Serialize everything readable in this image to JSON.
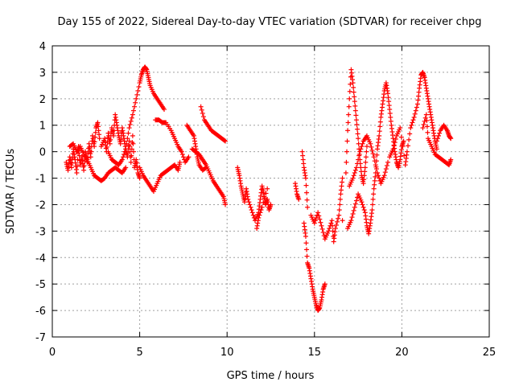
{
  "chart_data": {
    "type": "scatter",
    "title": "Day 155 of 2022, Sidereal Day-to-day VTEC variation (SDTVAR) for receiver chpg",
    "xlabel": "GPS time / hours",
    "ylabel": "SDTVAR / TECUs",
    "xlim": [
      0,
      25
    ],
    "ylim": [
      -7,
      4
    ],
    "xticks": [
      0,
      5,
      10,
      15,
      20,
      25
    ],
    "yticks": [
      -7,
      -6,
      -5,
      -4,
      -3,
      -2,
      -1,
      0,
      1,
      2,
      3,
      4
    ],
    "grid": true,
    "marker": "+",
    "color": "#ff0000",
    "series": [
      {
        "name": "SDTVAR chpg",
        "points": [
          [
            0.8,
            -0.4
          ],
          [
            0.9,
            -0.7
          ],
          [
            1.0,
            -0.2
          ],
          [
            1.1,
            -0.6
          ],
          [
            1.2,
            0.1
          ],
          [
            1.3,
            -0.3
          ],
          [
            1.4,
            -0.8
          ],
          [
            1.5,
            0.2
          ],
          [
            1.6,
            -0.5
          ],
          [
            1.7,
            -0.2
          ],
          [
            1.8,
            -0.7
          ],
          [
            1.9,
            0.0
          ],
          [
            2.0,
            -0.4
          ],
          [
            2.1,
            0.3
          ],
          [
            2.2,
            -0.2
          ],
          [
            2.3,
            0.6
          ],
          [
            2.4,
            0.2
          ],
          [
            2.5,
            0.9
          ],
          [
            2.6,
            1.1
          ],
          [
            2.7,
            0.5
          ],
          [
            1.0,
            0.2
          ],
          [
            1.2,
            0.3
          ],
          [
            1.4,
            0.0
          ],
          [
            1.6,
            0.2
          ],
          [
            1.8,
            -0.1
          ],
          [
            2.0,
            -0.3
          ],
          [
            2.2,
            -0.6
          ],
          [
            2.4,
            -0.9
          ],
          [
            2.6,
            -1.0
          ],
          [
            2.8,
            -1.1
          ],
          [
            3.0,
            -1.0
          ],
          [
            3.2,
            -0.8
          ],
          [
            3.4,
            -0.7
          ],
          [
            3.6,
            -0.6
          ],
          [
            3.8,
            -0.7
          ],
          [
            4.0,
            -0.8
          ],
          [
            4.2,
            -0.6
          ],
          [
            2.8,
            0.2
          ],
          [
            3.0,
            0.5
          ],
          [
            3.1,
            0.0
          ],
          [
            3.2,
            0.7
          ],
          [
            3.3,
            0.3
          ],
          [
            3.4,
            0.9
          ],
          [
            3.5,
            0.6
          ],
          [
            3.6,
            1.4
          ],
          [
            3.7,
            1.0
          ],
          [
            3.8,
            0.6
          ],
          [
            3.9,
            0.3
          ],
          [
            4.0,
            0.9
          ],
          [
            4.1,
            0.5
          ],
          [
            4.2,
            0.1
          ],
          [
            4.3,
            -0.2
          ],
          [
            4.4,
            0.4
          ],
          [
            4.5,
            -0.4
          ],
          [
            4.6,
            0.6
          ],
          [
            4.7,
            -0.6
          ],
          [
            4.8,
            -0.3
          ],
          [
            4.9,
            -0.8
          ],
          [
            5.0,
            -1.0
          ],
          [
            3.2,
            0.0
          ],
          [
            3.4,
            -0.3
          ],
          [
            3.6,
            -0.4
          ],
          [
            3.8,
            -0.5
          ],
          [
            4.0,
            -0.3
          ],
          [
            4.2,
            0.1
          ],
          [
            4.4,
            0.9
          ],
          [
            4.6,
            1.4
          ],
          [
            4.8,
            2.0
          ],
          [
            5.0,
            2.6
          ],
          [
            5.1,
            2.9
          ],
          [
            5.2,
            3.1
          ],
          [
            5.3,
            3.2
          ],
          [
            5.4,
            3.1
          ],
          [
            5.5,
            2.8
          ],
          [
            5.6,
            2.5
          ],
          [
            5.8,
            2.2
          ],
          [
            6.0,
            2.0
          ],
          [
            6.2,
            1.8
          ],
          [
            6.4,
            1.6
          ],
          [
            5.0,
            -0.6
          ],
          [
            5.2,
            -0.9
          ],
          [
            5.4,
            -1.1
          ],
          [
            5.6,
            -1.3
          ],
          [
            5.8,
            -1.5
          ],
          [
            6.0,
            -1.2
          ],
          [
            6.2,
            -0.9
          ],
          [
            6.4,
            -0.8
          ],
          [
            6.6,
            -0.7
          ],
          [
            6.8,
            -0.6
          ],
          [
            7.0,
            -0.5
          ],
          [
            7.2,
            -0.7
          ],
          [
            7.3,
            -0.4
          ],
          [
            5.9,
            1.2
          ],
          [
            6.1,
            1.2
          ],
          [
            6.3,
            1.1
          ],
          [
            6.5,
            1.1
          ],
          [
            6.8,
            0.8
          ],
          [
            7.0,
            0.5
          ],
          [
            7.2,
            0.2
          ],
          [
            7.4,
            0.0
          ],
          [
            7.6,
            -0.4
          ],
          [
            7.8,
            -0.2
          ],
          [
            7.7,
            1.0
          ],
          [
            7.9,
            0.8
          ],
          [
            8.1,
            0.6
          ],
          [
            8.2,
            0.2
          ],
          [
            8.3,
            -0.2
          ],
          [
            8.4,
            -0.5
          ],
          [
            8.6,
            -0.7
          ],
          [
            8.8,
            -0.6
          ],
          [
            8.5,
            1.7
          ],
          [
            8.7,
            1.2
          ],
          [
            8.9,
            1.0
          ],
          [
            9.1,
            0.8
          ],
          [
            9.3,
            0.7
          ],
          [
            9.5,
            0.6
          ],
          [
            9.7,
            0.5
          ],
          [
            9.9,
            0.4
          ],
          [
            8.0,
            0.1
          ],
          [
            8.2,
            0.0
          ],
          [
            8.4,
            -0.1
          ],
          [
            8.6,
            -0.3
          ],
          [
            8.8,
            -0.5
          ],
          [
            9.0,
            -0.8
          ],
          [
            9.2,
            -1.1
          ],
          [
            9.4,
            -1.3
          ],
          [
            9.6,
            -1.5
          ],
          [
            9.8,
            -1.7
          ],
          [
            9.9,
            -2.0
          ],
          [
            10.6,
            -0.6
          ],
          [
            10.7,
            -0.9
          ],
          [
            10.8,
            -1.3
          ],
          [
            10.9,
            -1.6
          ],
          [
            11.0,
            -1.9
          ],
          [
            11.1,
            -1.4
          ],
          [
            11.2,
            -1.8
          ],
          [
            11.4,
            -2.2
          ],
          [
            11.6,
            -2.6
          ],
          [
            11.8,
            -2.3
          ],
          [
            11.9,
            -1.8
          ],
          [
            12.0,
            -1.3
          ],
          [
            12.1,
            -1.6
          ],
          [
            12.2,
            -2.0
          ],
          [
            12.3,
            -1.8
          ],
          [
            12.4,
            -2.2
          ],
          [
            12.5,
            -2.0
          ],
          [
            11.7,
            -2.9
          ],
          [
            11.8,
            -2.5
          ],
          [
            12.0,
            -2.1
          ],
          [
            12.3,
            -1.4
          ],
          [
            13.9,
            -1.2
          ],
          [
            14.0,
            -1.6
          ],
          [
            14.1,
            -1.8
          ],
          [
            14.3,
            0.0
          ],
          [
            14.4,
            -0.6
          ],
          [
            14.5,
            -1.0
          ],
          [
            14.6,
            -2.1
          ],
          [
            14.4,
            -2.7
          ],
          [
            14.5,
            -3.2
          ],
          [
            14.6,
            -4.2
          ],
          [
            14.7,
            -4.4
          ],
          [
            14.8,
            -4.8
          ],
          [
            14.9,
            -5.2
          ],
          [
            15.0,
            -5.5
          ],
          [
            15.1,
            -5.8
          ],
          [
            15.2,
            -6.0
          ],
          [
            15.3,
            -5.9
          ],
          [
            15.4,
            -5.6
          ],
          [
            15.5,
            -5.2
          ],
          [
            15.6,
            -5.0
          ],
          [
            14.8,
            -2.4
          ],
          [
            15.0,
            -2.7
          ],
          [
            15.2,
            -2.3
          ],
          [
            15.4,
            -2.8
          ],
          [
            15.6,
            -3.3
          ],
          [
            15.8,
            -3.0
          ],
          [
            16.0,
            -2.6
          ],
          [
            16.1,
            -3.4
          ],
          [
            16.2,
            -2.9
          ],
          [
            16.4,
            -2.4
          ],
          [
            16.5,
            -1.6
          ],
          [
            16.6,
            -1.0
          ],
          [
            16.6,
            -2.6
          ],
          [
            16.8,
            -0.8
          ],
          [
            16.9,
            0.8
          ],
          [
            17.0,
            2.0
          ],
          [
            17.1,
            3.1
          ],
          [
            17.2,
            2.6
          ],
          [
            17.3,
            1.9
          ],
          [
            17.4,
            1.2
          ],
          [
            17.5,
            0.5
          ],
          [
            17.6,
            -0.3
          ],
          [
            17.7,
            -0.9
          ],
          [
            17.8,
            -1.2
          ],
          [
            17.9,
            -0.6
          ],
          [
            18.0,
            0.2
          ],
          [
            17.0,
            -1.3
          ],
          [
            17.2,
            -1.0
          ],
          [
            17.4,
            -0.6
          ],
          [
            17.6,
            0.0
          ],
          [
            17.8,
            0.4
          ],
          [
            18.0,
            0.6
          ],
          [
            18.2,
            0.3
          ],
          [
            18.4,
            -0.2
          ],
          [
            18.6,
            -0.8
          ],
          [
            18.8,
            -1.2
          ],
          [
            19.0,
            -0.9
          ],
          [
            19.2,
            -0.4
          ],
          [
            16.9,
            -2.9
          ],
          [
            17.1,
            -2.6
          ],
          [
            17.3,
            -2.1
          ],
          [
            17.5,
            -1.6
          ],
          [
            17.7,
            -1.9
          ],
          [
            17.9,
            -2.3
          ],
          [
            18.0,
            -2.8
          ],
          [
            18.1,
            -3.1
          ],
          [
            18.2,
            -2.7
          ],
          [
            18.3,
            -2.2
          ],
          [
            18.4,
            -1.4
          ],
          [
            18.5,
            -0.8
          ],
          [
            18.6,
            0.1
          ],
          [
            18.7,
            0.6
          ],
          [
            18.8,
            1.3
          ],
          [
            18.9,
            1.8
          ],
          [
            19.0,
            2.3
          ],
          [
            19.1,
            2.6
          ],
          [
            19.2,
            2.2
          ],
          [
            19.3,
            1.6
          ],
          [
            19.4,
            1.0
          ],
          [
            19.5,
            0.5
          ],
          [
            19.6,
            0.0
          ],
          [
            19.7,
            -0.4
          ],
          [
            19.8,
            -0.6
          ],
          [
            19.9,
            -0.3
          ],
          [
            20.0,
            0.2
          ],
          [
            20.1,
            0.4
          ],
          [
            19.3,
            -0.2
          ],
          [
            19.5,
            0.1
          ],
          [
            19.7,
            0.6
          ],
          [
            19.9,
            0.9
          ],
          [
            20.2,
            -0.5
          ],
          [
            20.3,
            0.0
          ],
          [
            20.5,
            0.9
          ],
          [
            20.7,
            1.3
          ],
          [
            20.9,
            1.8
          ],
          [
            21.0,
            2.4
          ],
          [
            21.1,
            2.9
          ],
          [
            21.2,
            3.0
          ],
          [
            21.3,
            2.8
          ],
          [
            21.4,
            2.4
          ],
          [
            21.5,
            2.0
          ],
          [
            21.6,
            1.6
          ],
          [
            21.7,
            1.2
          ],
          [
            21.8,
            0.8
          ],
          [
            21.9,
            0.4
          ],
          [
            22.0,
            0.1
          ],
          [
            21.2,
            0.9
          ],
          [
            21.4,
            1.4
          ],
          [
            21.5,
            0.5
          ],
          [
            21.7,
            0.2
          ],
          [
            21.9,
            -0.1
          ],
          [
            22.1,
            -0.2
          ],
          [
            22.3,
            -0.3
          ],
          [
            22.5,
            -0.4
          ],
          [
            22.7,
            -0.5
          ],
          [
            22.8,
            -0.3
          ],
          [
            22.0,
            0.4
          ],
          [
            22.2,
            0.8
          ],
          [
            22.4,
            1.0
          ],
          [
            22.6,
            0.8
          ],
          [
            22.7,
            0.6
          ],
          [
            22.8,
            0.5
          ]
        ]
      }
    ]
  }
}
